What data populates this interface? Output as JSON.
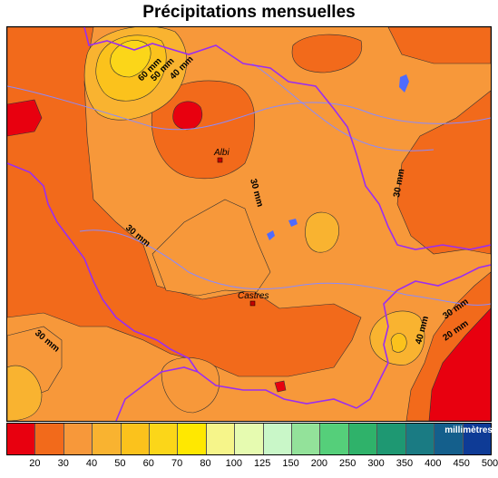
{
  "title": "Précipitations mensuelles",
  "legend": {
    "unit": "millimètres",
    "colors": [
      "#e8000f",
      "#f26a1b",
      "#f7983a",
      "#f9b330",
      "#fbc21c",
      "#fbd619",
      "#ffe800",
      "#f6f58a",
      "#e6fbb0",
      "#c9f7c8",
      "#93e29a",
      "#55cf7a",
      "#2fb26a",
      "#1e9872",
      "#1a7b83",
      "#145f8c",
      "#0e3b96"
    ],
    "ticks": [
      "20",
      "30",
      "40",
      "50",
      "60",
      "70",
      "80",
      "100",
      "125",
      "150",
      "200",
      "250",
      "300",
      "350",
      "400",
      "450",
      "500"
    ]
  },
  "map": {
    "cities": [
      {
        "name": "Albi"
      },
      {
        "name": "Castres"
      }
    ],
    "isolines": [
      "60 mm",
      "50 mm",
      "40 mm",
      "30 mm",
      "30 mm",
      "30 mm",
      "30 mm",
      "40 mm",
      "30 mm",
      "20 mm"
    ]
  }
}
